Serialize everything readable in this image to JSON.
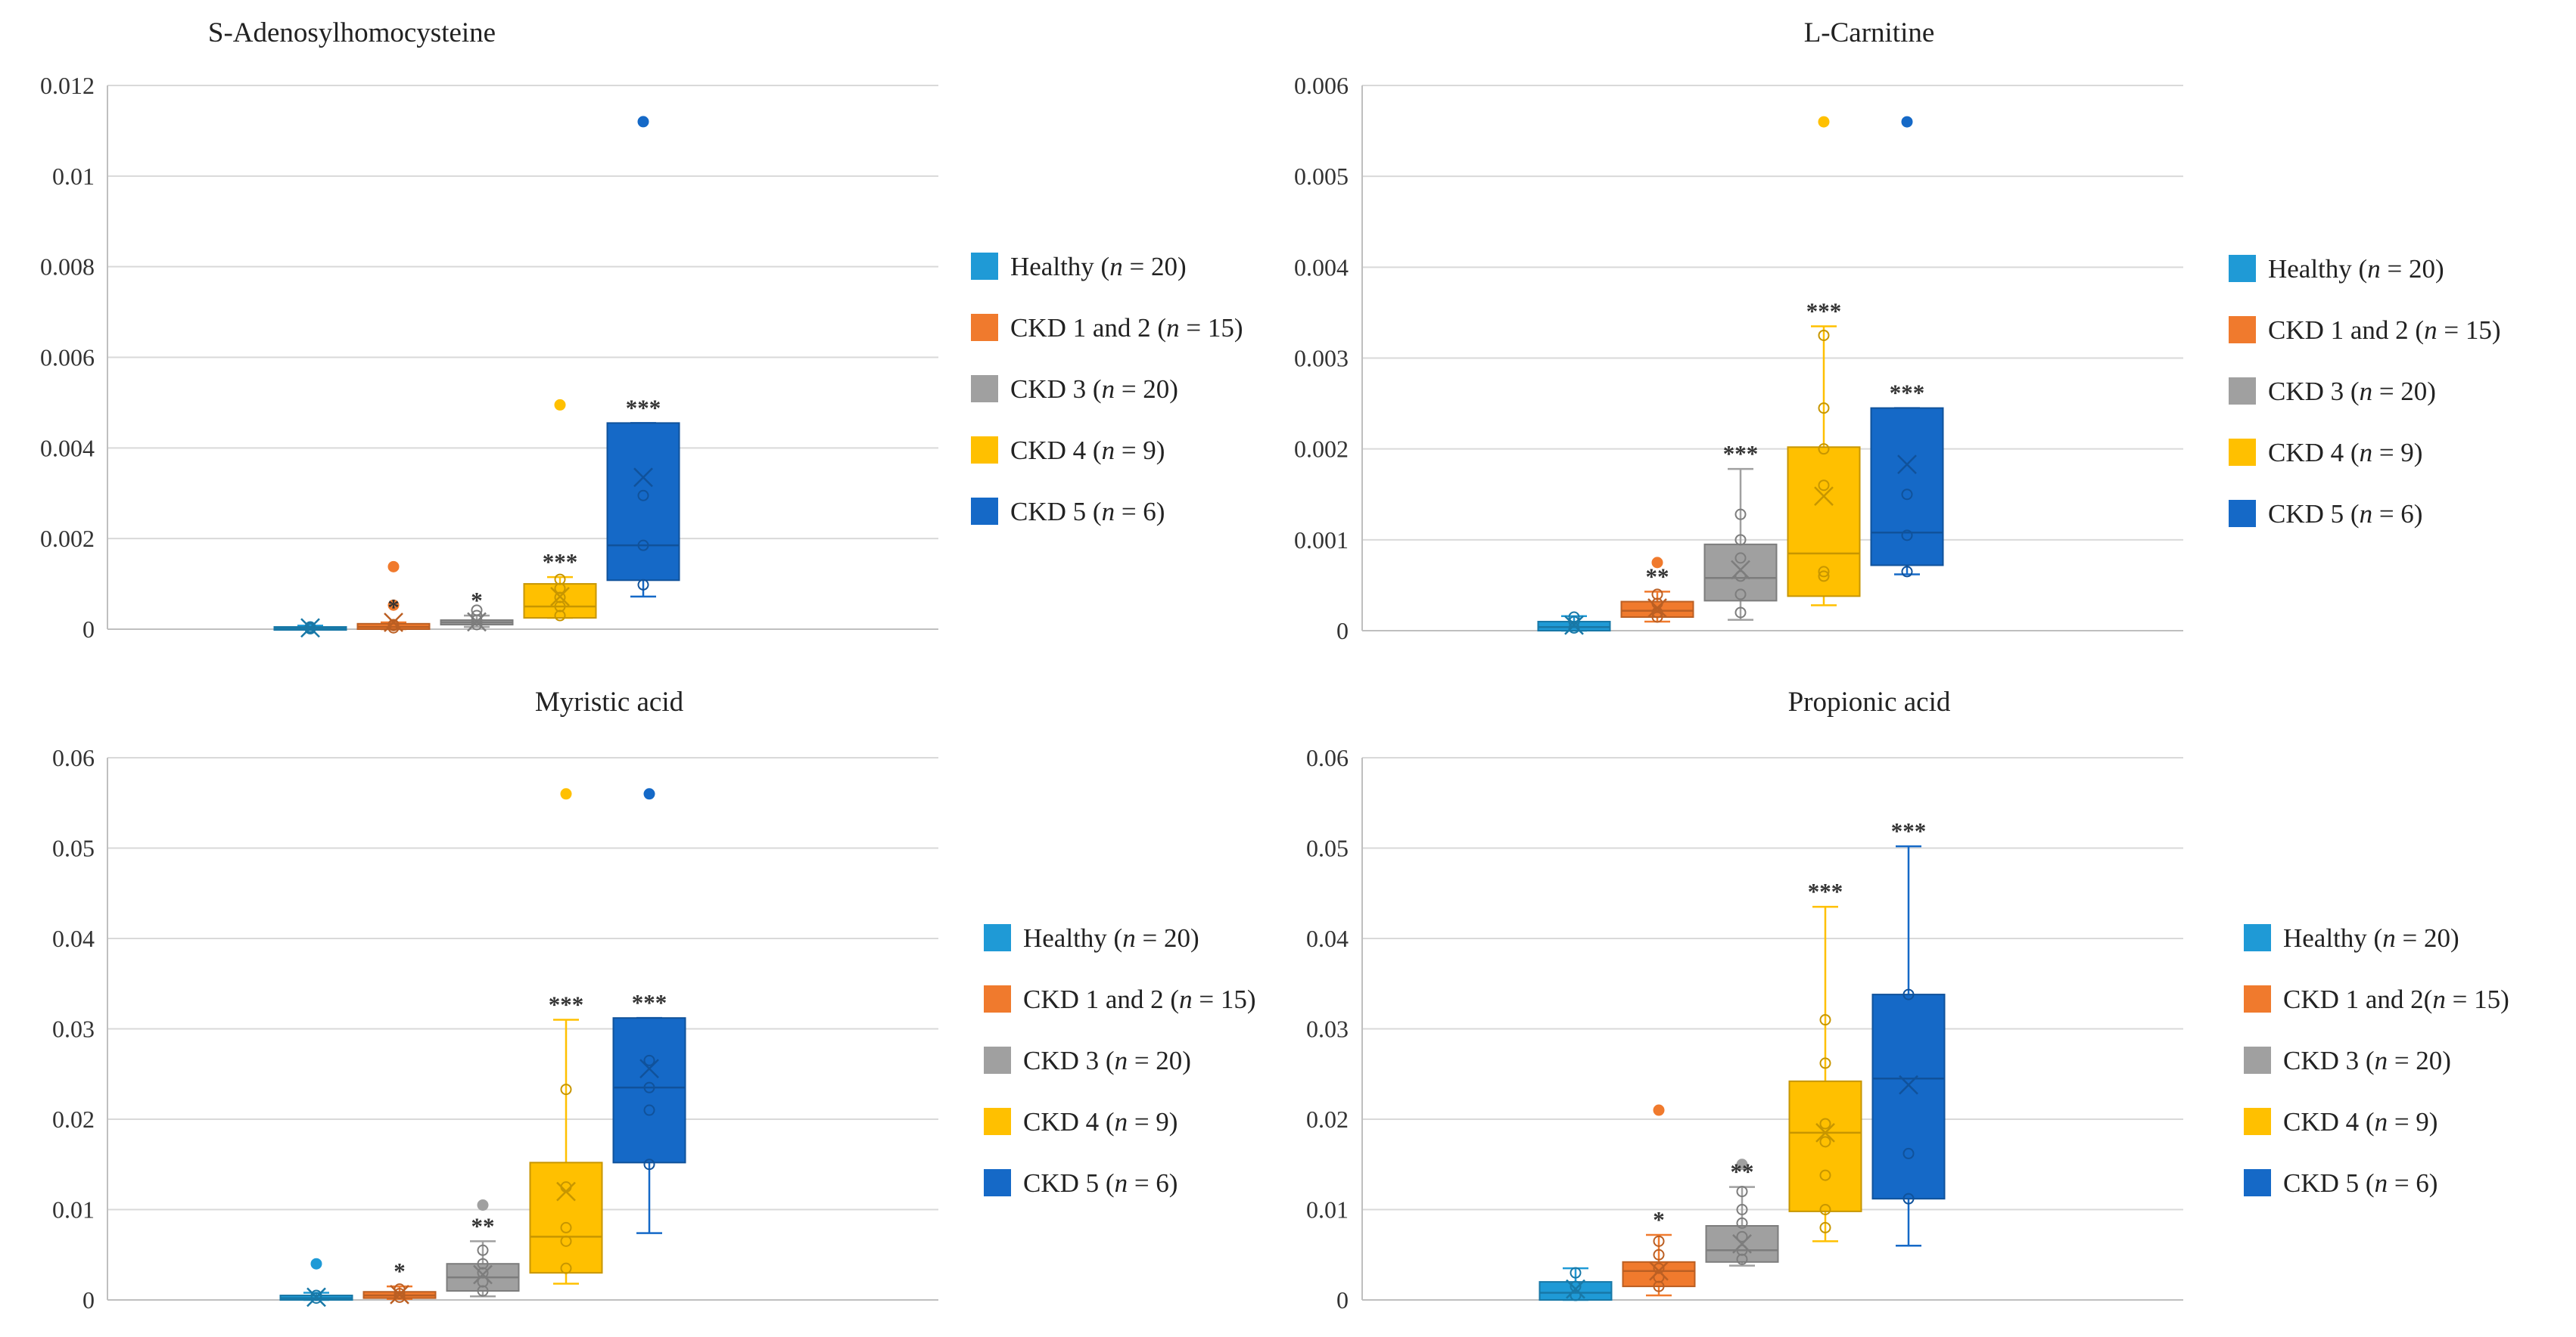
{
  "chart_data": [
    {
      "type": "box",
      "title": "S-Adenosylhomocysteine",
      "ylim": [
        0,
        0.012
      ],
      "yticks": [
        0,
        0.002,
        0.004,
        0.006,
        0.008,
        0.01,
        0.012
      ],
      "ytick_labels": [
        "0",
        "0.002",
        "0.004",
        "0.006",
        "0.008",
        "0.01",
        "0.012"
      ],
      "legend": [
        {
          "parts": [
            "Healthy  (",
            "n",
            " = 20)"
          ]
        },
        {
          "parts": [
            "CKD 1 and 2 (",
            "n",
            " = 15)"
          ]
        },
        {
          "parts": [
            "CKD 3 (",
            "n",
            " = 20)"
          ]
        },
        {
          "parts": [
            "CKD 4 (",
            "n",
            " = 9)"
          ]
        },
        {
          "parts": [
            "CKD 5 (",
            "n",
            " = 6)"
          ]
        }
      ],
      "series": [
        {
          "name": "Healthy",
          "color": "#1f9ad6",
          "q1": 0,
          "median": 2e-05,
          "q3": 5e-05,
          "whisker_low": 0,
          "whisker_high": 8e-05,
          "mean": 3e-05,
          "points": [
            1e-05,
            3e-05,
            5e-05
          ],
          "outliers": [],
          "sig": ""
        },
        {
          "name": "CKD 1 and 2",
          "color": "#f07a2d",
          "q1": 0,
          "median": 5e-05,
          "q3": 0.00012,
          "whisker_low": 0,
          "whisker_high": 0.00015,
          "mean": 0.00015,
          "points": [
            3e-05,
            8e-05,
            0.0001
          ],
          "outliers": [
            0.00053,
            0.00138
          ],
          "sig": "*"
        },
        {
          "name": "CKD 3",
          "color": "#a0a0a0",
          "q1": 0.0001,
          "median": 0.00015,
          "q3": 0.0002,
          "whisker_low": 5e-05,
          "whisker_high": 0.0003,
          "mean": 0.00016,
          "points": [
            0.0001,
            0.0002,
            0.0003,
            0.00042
          ],
          "outliers": [],
          "sig": "*"
        },
        {
          "name": "CKD 4",
          "color": "#ffc000",
          "q1": 0.00025,
          "median": 0.0005,
          "q3": 0.001,
          "whisker_low": 0.00025,
          "whisker_high": 0.00115,
          "mean": 0.00072,
          "points": [
            0.0003,
            0.0005,
            0.0007,
            0.0009,
            0.0011
          ],
          "outliers": [
            0.00495
          ],
          "sig": "***"
        },
        {
          "name": "CKD 5",
          "color": "#1569c7",
          "q1": 0.00108,
          "median": 0.00185,
          "q3": 0.00455,
          "whisker_low": 0.00072,
          "whisker_high": 0.00455,
          "mean": 0.00335,
          "points": [
            0.00098,
            0.00185,
            0.00295
          ],
          "outliers": [
            0.0112
          ],
          "sig": "***"
        }
      ]
    },
    {
      "type": "box",
      "title": "L-Carnitine",
      "ylim": [
        0,
        0.006
      ],
      "yticks": [
        0,
        0.001,
        0.002,
        0.003,
        0.004,
        0.005,
        0.006
      ],
      "ytick_labels": [
        "0",
        "0.001",
        "0.002",
        "0.003",
        "0.004",
        "0.005",
        "0.006"
      ],
      "legend": [
        {
          "parts": [
            "Healthy  (",
            "n",
            " = 20)"
          ]
        },
        {
          "parts": [
            "CKD 1 and 2 (",
            "n",
            " = 15)"
          ]
        },
        {
          "parts": [
            "CKD 3 (",
            "n",
            " = 20)"
          ]
        },
        {
          "parts": [
            "CKD 4 (",
            "n",
            " = 9)"
          ]
        },
        {
          "parts": [
            "CKD 5 (",
            "n",
            " = 6)"
          ]
        }
      ],
      "series": [
        {
          "name": "Healthy",
          "color": "#1f9ad6",
          "q1": 0,
          "median": 4e-05,
          "q3": 0.0001,
          "whisker_low": 0,
          "whisker_high": 0.00016,
          "mean": 6e-05,
          "points": [
            3e-05,
            0.0001,
            0.00015
          ],
          "outliers": [],
          "sig": ""
        },
        {
          "name": "CKD 1 and 2",
          "color": "#f07a2d",
          "q1": 0.00015,
          "median": 0.00022,
          "q3": 0.00032,
          "whisker_low": 0.0001,
          "whisker_high": 0.00043,
          "mean": 0.00025,
          "points": [
            0.00015,
            0.0002,
            0.0003,
            0.0004
          ],
          "outliers": [
            0.00075
          ],
          "sig": "**"
        },
        {
          "name": "CKD 3",
          "color": "#a0a0a0",
          "q1": 0.00033,
          "median": 0.00058,
          "q3": 0.00095,
          "whisker_low": 0.00012,
          "whisker_high": 0.00178,
          "mean": 0.00067,
          "points": [
            0.0002,
            0.0004,
            0.0006,
            0.0008,
            0.001,
            0.00128
          ],
          "outliers": [],
          "sig": "***"
        },
        {
          "name": "CKD 4",
          "color": "#ffc000",
          "q1": 0.00038,
          "median": 0.00085,
          "q3": 0.00202,
          "whisker_low": 0.00028,
          "whisker_high": 0.00335,
          "mean": 0.00148,
          "points": [
            0.0006,
            0.00065,
            0.0016,
            0.002,
            0.00245,
            0.00325
          ],
          "outliers": [
            0.0056
          ],
          "sig": "***"
        },
        {
          "name": "CKD 5",
          "color": "#1569c7",
          "q1": 0.00072,
          "median": 0.00108,
          "q3": 0.00245,
          "whisker_low": 0.00062,
          "whisker_high": 0.00245,
          "mean": 0.00183,
          "points": [
            0.00065,
            0.00105,
            0.0015
          ],
          "outliers": [
            0.0056
          ],
          "sig": "***"
        }
      ]
    },
    {
      "type": "box",
      "title": "Myristic acid",
      "ylim": [
        0,
        0.06
      ],
      "yticks": [
        0,
        0.01,
        0.02,
        0.03,
        0.04,
        0.05,
        0.06
      ],
      "ytick_labels": [
        "0",
        "0.01",
        "0.02",
        "0.03",
        "0.04",
        "0.05",
        "0.06"
      ],
      "legend": [
        {
          "parts": [
            "Healthy (",
            "n",
            " = 20)"
          ]
        },
        {
          "parts": [
            "CKD 1 and 2 (",
            "n",
            " = 15)"
          ]
        },
        {
          "parts": [
            "CKD 3 (",
            "n",
            " = 20)"
          ]
        },
        {
          "parts": [
            "CKD 4 (",
            "n",
            " = 9)"
          ]
        },
        {
          "parts": [
            "CKD 5 (",
            "n",
            " = 6)"
          ]
        }
      ],
      "series": [
        {
          "name": "Healthy",
          "color": "#1f9ad6",
          "q1": 0,
          "median": 0.0002,
          "q3": 0.0005,
          "whisker_low": 0,
          "whisker_high": 0.0008,
          "mean": 0.0003,
          "points": [
            0.0002,
            0.0005
          ],
          "outliers": [
            0.004
          ],
          "sig": ""
        },
        {
          "name": "CKD 1 and 2",
          "color": "#f07a2d",
          "q1": 0.0002,
          "median": 0.0005,
          "q3": 0.0009,
          "whisker_low": 0.0001,
          "whisker_high": 0.0015,
          "mean": 0.0006,
          "points": [
            0.0003,
            0.0007,
            0.0012
          ],
          "outliers": [],
          "sig": "*"
        },
        {
          "name": "CKD 3",
          "color": "#a0a0a0",
          "q1": 0.001,
          "median": 0.0025,
          "q3": 0.004,
          "whisker_low": 0.0004,
          "whisker_high": 0.0065,
          "mean": 0.0028,
          "points": [
            0.001,
            0.002,
            0.003,
            0.004,
            0.0055
          ],
          "outliers": [
            0.0105
          ],
          "sig": "**"
        },
        {
          "name": "CKD 4",
          "color": "#ffc000",
          "q1": 0.003,
          "median": 0.007,
          "q3": 0.0152,
          "whisker_low": 0.0018,
          "whisker_high": 0.031,
          "mean": 0.012,
          "points": [
            0.0035,
            0.0065,
            0.008,
            0.0125,
            0.0233
          ],
          "outliers": [
            0.056
          ],
          "sig": "***"
        },
        {
          "name": "CKD 5",
          "color": "#1569c7",
          "q1": 0.0152,
          "median": 0.0235,
          "q3": 0.0312,
          "whisker_low": 0.0074,
          "whisker_high": 0.0312,
          "mean": 0.0256,
          "points": [
            0.015,
            0.021,
            0.0235,
            0.0265
          ],
          "outliers": [
            0.056
          ],
          "sig": "***"
        }
      ]
    },
    {
      "type": "box",
      "title": "Propionic acid",
      "ylim": [
        0,
        0.06
      ],
      "yticks": [
        0,
        0.01,
        0.02,
        0.03,
        0.04,
        0.05,
        0.06
      ],
      "ytick_labels": [
        "0",
        "0.01",
        "0.02",
        "0.03",
        "0.04",
        "0.05",
        "0.06"
      ],
      "legend": [
        {
          "parts": [
            "Healthy (",
            "n",
            " = 20)"
          ]
        },
        {
          "parts": [
            "CKD 1 and 2(",
            "n",
            " = 15)"
          ]
        },
        {
          "parts": [
            "CKD 3 (",
            "n",
            " = 20)"
          ]
        },
        {
          "parts": [
            "CKD 4 (",
            "n",
            " = 9)"
          ]
        },
        {
          "parts": [
            "CKD 5 (",
            "n",
            " = 6)"
          ]
        }
      ],
      "series": [
        {
          "name": "Healthy",
          "color": "#1f9ad6",
          "q1": 0,
          "median": 0.0008,
          "q3": 0.002,
          "whisker_low": 0,
          "whisker_high": 0.0035,
          "mean": 0.0012,
          "points": [
            0.0005,
            0.0015,
            0.003
          ],
          "outliers": [],
          "sig": ""
        },
        {
          "name": "CKD 1 and 2",
          "color": "#f07a2d",
          "q1": 0.0015,
          "median": 0.0032,
          "q3": 0.0042,
          "whisker_low": 0.0005,
          "whisker_high": 0.0072,
          "mean": 0.0032,
          "points": [
            0.0015,
            0.0025,
            0.0035,
            0.005,
            0.0065
          ],
          "outliers": [
            0.021
          ],
          "sig": "*"
        },
        {
          "name": "CKD 3",
          "color": "#a0a0a0",
          "q1": 0.0042,
          "median": 0.0055,
          "q3": 0.0082,
          "whisker_low": 0.0038,
          "whisker_high": 0.0125,
          "mean": 0.0062,
          "points": [
            0.0045,
            0.0055,
            0.007,
            0.0085,
            0.01,
            0.012
          ],
          "outliers": [
            0.015
          ],
          "sig": "**"
        },
        {
          "name": "CKD 4",
          "color": "#ffc000",
          "q1": 0.0098,
          "median": 0.0185,
          "q3": 0.0242,
          "whisker_low": 0.0065,
          "whisker_high": 0.0435,
          "mean": 0.0185,
          "points": [
            0.008,
            0.01,
            0.0138,
            0.0175,
            0.0195,
            0.0262,
            0.031
          ],
          "outliers": [],
          "sig": "***"
        },
        {
          "name": "CKD 5",
          "color": "#1569c7",
          "q1": 0.0112,
          "median": 0.0245,
          "q3": 0.0338,
          "whisker_low": 0.006,
          "whisker_high": 0.0502,
          "mean": 0.0238,
          "points": [
            0.0112,
            0.0162,
            0.0338
          ],
          "outliers": [],
          "sig": "***"
        }
      ]
    }
  ]
}
